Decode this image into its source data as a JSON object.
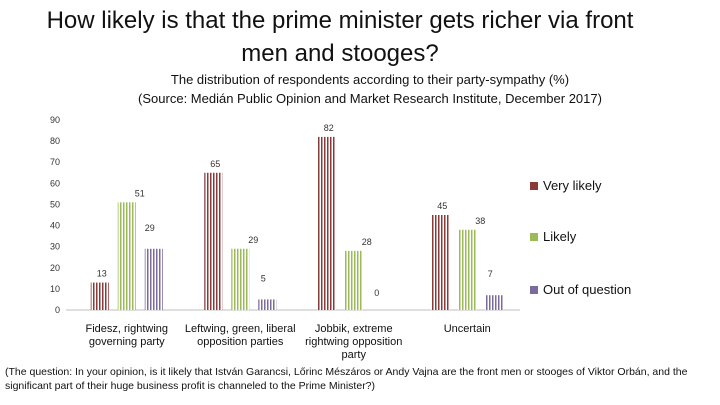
{
  "title": "How likely is that the prime minister gets richer via front men and stooges?",
  "subtitle_line1": "The distribution of respondents according to their party-sympathy (%)",
  "subtitle_line2": "(Source: Medián Public Opinion and Market Research Institute, December 2017)",
  "footnote": "(The question: In your opinion, is it likely that István Garancsi, Lőrinc Mészáros or Andy Vajna are the front men or stooges of Viktor Orbán, and the significant part of their huge business profit is channeled to the Prime Minister?)",
  "chart_data": {
    "type": "bar",
    "categories": [
      [
        "Fidesz, rightwing",
        "governing party"
      ],
      [
        "Leftwing, green, liberal",
        "opposition parties"
      ],
      [
        "Jobbik, extreme",
        "rightwing opposition",
        "party"
      ],
      [
        "Uncertain"
      ]
    ],
    "series": [
      {
        "name": "Very likely",
        "color": "#8b3a3a",
        "values": [
          13,
          65,
          82,
          45
        ]
      },
      {
        "name": "Likely",
        "color": "#9bbb59",
        "values": [
          51,
          29,
          28,
          38
        ]
      },
      {
        "name": "Out of question",
        "color": "#7b6a9e",
        "values": [
          29,
          5,
          0,
          7
        ]
      }
    ],
    "yticks": [
      0,
      10,
      20,
      30,
      40,
      50,
      60,
      70,
      80,
      90
    ],
    "ylim": [
      0,
      90
    ],
    "legend_position": "right",
    "grid": false
  }
}
